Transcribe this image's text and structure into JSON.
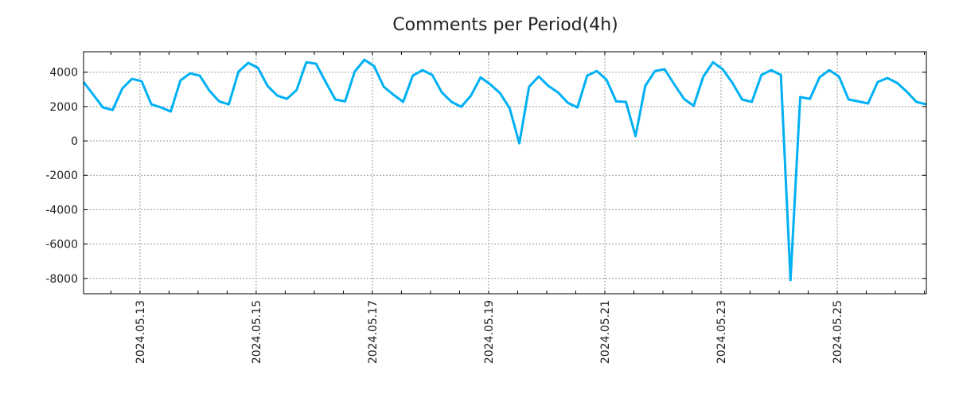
{
  "chart_data": {
    "type": "line",
    "title": "Comments per Period(4h)",
    "xlabel": "",
    "ylabel": "",
    "x_reference": "2024-05-13 00:00",
    "x_start_hours": -23.3,
    "step_hours": 4,
    "xlim_hours": [
      -23.3,
      324.8
    ],
    "ylim": [
      -8890,
      5190
    ],
    "grid": true,
    "color": "#00b0f4",
    "yticks": [
      4000,
      2000,
      0,
      -2000,
      -4000,
      -6000,
      -8000
    ],
    "ytick_labels": [
      "4000",
      "2000",
      "0",
      "-2000",
      "-4000",
      "-6000",
      "-8000"
    ],
    "xticks_hours": [
      0,
      48,
      96,
      144,
      192,
      240,
      288
    ],
    "xtick_labels": [
      "2024.05.13",
      "2024.05.15",
      "2024.05.17",
      "2024.05.19",
      "2024.05.21",
      "2024.05.23",
      "2024.05.25"
    ],
    "series": [
      {
        "name": "comments",
        "values": [
          3430,
          2690,
          1950,
          1800,
          3050,
          3610,
          3470,
          2130,
          1950,
          1710,
          3520,
          3930,
          3800,
          2920,
          2300,
          2130,
          4030,
          4540,
          4260,
          3200,
          2640,
          2450,
          2960,
          4580,
          4490,
          3430,
          2410,
          2300,
          4030,
          4720,
          4350,
          3150,
          2690,
          2270,
          3800,
          4120,
          3840,
          2820,
          2270,
          1990,
          2640,
          3700,
          3290,
          2780,
          1900,
          -140,
          3150,
          3750,
          3200,
          2820,
          2220,
          1950,
          3800,
          4070,
          3560,
          2300,
          2270,
          280,
          3200,
          4070,
          4170,
          3290,
          2450,
          2040,
          3750,
          4580,
          4170,
          3380,
          2410,
          2270,
          3840,
          4120,
          3840,
          -8100,
          2550,
          2450,
          3700,
          4120,
          3750,
          2410,
          2300,
          2180,
          3430,
          3660,
          3380,
          2870,
          2270,
          2130
        ]
      }
    ]
  }
}
